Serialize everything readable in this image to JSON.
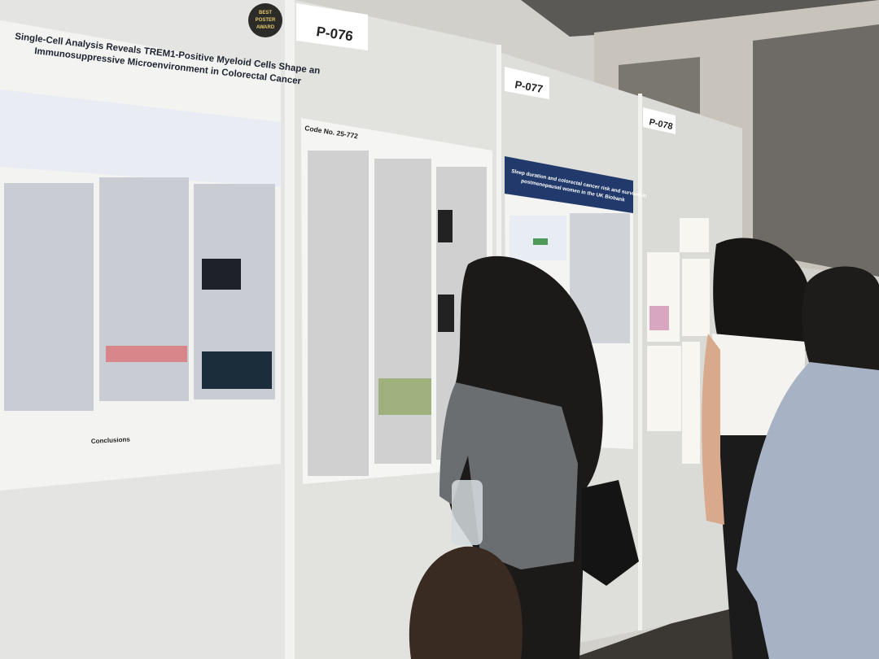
{
  "boards": [
    {
      "label": "P-076"
    },
    {
      "label": "P-077"
    },
    {
      "label": "P-078"
    }
  ],
  "posters": [
    {
      "badge": [
        "BEST",
        "POSTER",
        "AWARD"
      ],
      "title_lines": [
        "Single-Cell Analysis Reveals TREM1-Positive Myeloid Cells Shape an",
        "Immunosuppressive Microenvironment in Colorectal Cancer"
      ],
      "section": "Conclusions"
    },
    {
      "code": "Code No. 25-772"
    },
    {
      "title_lines": [
        "Sleep duration and colorectal cancer risk and survival in",
        "postmenopausal women in the UK Biobank"
      ]
    }
  ]
}
